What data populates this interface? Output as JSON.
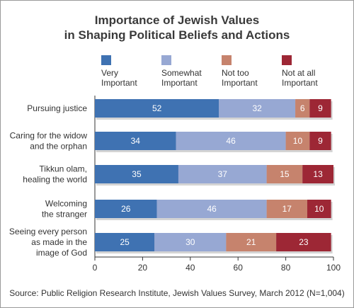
{
  "title_line1": "Importance of Jewish Values",
  "title_line2": "in Shaping Political Beliefs and Actions",
  "source": "Source: Public Religion Research Institute, Jewish Values Survey, March 2012 (N=1,004)",
  "chart_data": {
    "type": "bar",
    "orientation": "horizontal",
    "stacked": true,
    "categories": [
      [
        "Pursuing justice"
      ],
      [
        "Caring for the widow",
        "and the orphan"
      ],
      [
        "Tikkun olam,",
        "healing the world"
      ],
      [
        "Welcoming",
        "the stranger"
      ],
      [
        "Seeing every person",
        "as made in the",
        "image of God"
      ]
    ],
    "series": [
      {
        "name": "Very Important",
        "legend_lines": [
          "Very",
          "Important"
        ],
        "color": "#3f72b2",
        "values": [
          52,
          34,
          35,
          26,
          25
        ]
      },
      {
        "name": "Somewhat Important",
        "legend_lines": [
          "Somewhat",
          "Important"
        ],
        "color": "#97a8d3",
        "values": [
          32,
          46,
          37,
          46,
          30
        ]
      },
      {
        "name": "Not too Important",
        "legend_lines": [
          "Not too",
          "Important"
        ],
        "color": "#c6836d",
        "values": [
          6,
          10,
          15,
          17,
          21
        ]
      },
      {
        "name": "Not at all Important",
        "legend_lines": [
          "Not at all",
          "Important"
        ],
        "color": "#9d2735",
        "values": [
          9,
          9,
          13,
          10,
          23
        ]
      }
    ],
    "xlim": [
      0,
      100
    ],
    "xticks": [
      0,
      20,
      40,
      60,
      80,
      100
    ],
    "grid": false,
    "legend_position": "top"
  }
}
